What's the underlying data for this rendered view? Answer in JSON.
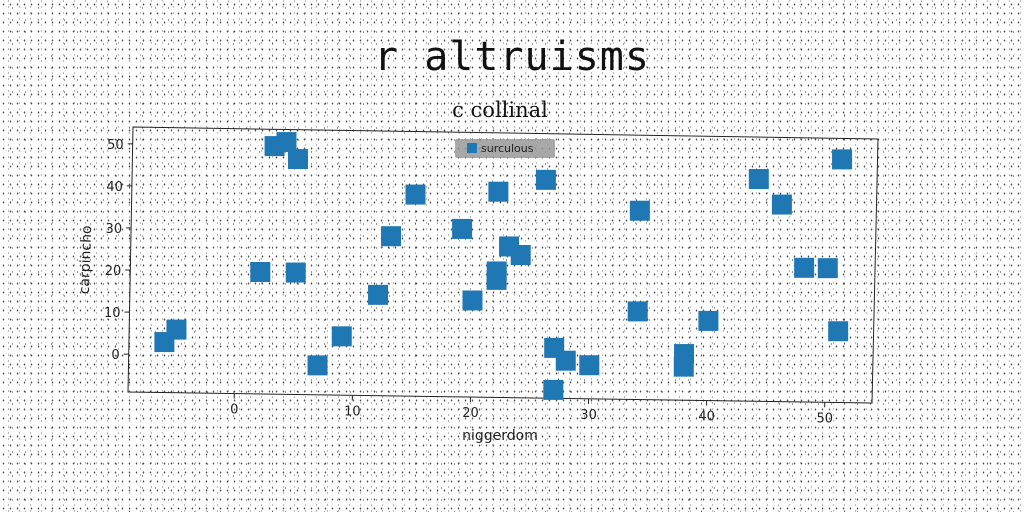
{
  "figure": {
    "super_title": "r altruisms"
  },
  "chart_data": {
    "type": "scatter",
    "title": "c collinal",
    "xlabel": "niggerdom",
    "ylabel": "carpincho",
    "xlim": [
      -9,
      54
    ],
    "ylim": [
      -9,
      54
    ],
    "xticks": [
      0,
      10,
      20,
      30,
      40,
      50
    ],
    "yticks": [
      0,
      10,
      20,
      30,
      40,
      50
    ],
    "grid": false,
    "legend_position": "top-center",
    "marker": "square",
    "colors": {
      "series": "#1f77b4",
      "legend_bg": "#999999"
    },
    "series": [
      {
        "name": "surculous",
        "points": [
          [
            -6,
            3
          ],
          [
            -5,
            6
          ],
          [
            2,
            20
          ],
          [
            3,
            50
          ],
          [
            4,
            51
          ],
          [
            5,
            47
          ],
          [
            5,
            20
          ],
          [
            7,
            -2
          ],
          [
            9,
            5
          ],
          [
            12,
            15
          ],
          [
            13,
            29
          ],
          [
            15,
            39
          ],
          [
            19,
            31
          ],
          [
            20,
            14
          ],
          [
            22,
            40
          ],
          [
            22,
            19
          ],
          [
            22,
            21
          ],
          [
            23,
            27
          ],
          [
            24,
            25
          ],
          [
            26,
            43
          ],
          [
            27,
            3
          ],
          [
            27,
            -7
          ],
          [
            28,
            0
          ],
          [
            30,
            -1
          ],
          [
            34,
            12
          ],
          [
            34,
            36
          ],
          [
            38,
            2
          ],
          [
            38,
            -1
          ],
          [
            40,
            10
          ],
          [
            44,
            44
          ],
          [
            46,
            38
          ],
          [
            48,
            23
          ],
          [
            50,
            23
          ],
          [
            51,
            8
          ],
          [
            51,
            49
          ]
        ]
      }
    ]
  }
}
